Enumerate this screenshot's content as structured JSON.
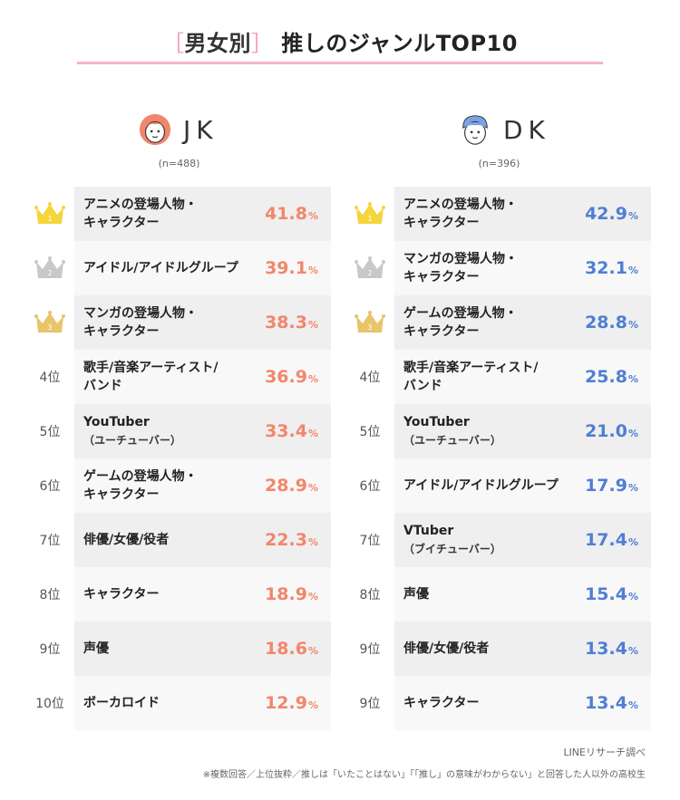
{
  "title": {
    "bracket_open": "［",
    "tag": "男女別",
    "bracket_close": "］",
    "main": "推しのジャンルTOP10"
  },
  "colors": {
    "jk_accent": "#f2866b",
    "dk_accent": "#4f7ed4",
    "gold": "#f5d53c",
    "silver": "#c8c8c8",
    "bronze": "#e8c46a",
    "title_rule": "#f6b6c6"
  },
  "groups": [
    {
      "label": "JK",
      "n": "(n=488)",
      "avatar_icon": "girl-face-icon",
      "rows": [
        {
          "rank": "1",
          "label": "アニメの登場人物・",
          "label2": "キャラクター",
          "sub": "",
          "value": "41.8",
          "unit": "%"
        },
        {
          "rank": "2",
          "label": "アイドル/アイドルグループ",
          "label2": "",
          "sub": "",
          "value": "39.1",
          "unit": "%"
        },
        {
          "rank": "3",
          "label": "マンガの登場人物・",
          "label2": "キャラクター",
          "sub": "",
          "value": "38.3",
          "unit": "%"
        },
        {
          "rank": "4位",
          "label": "歌手/音楽アーティスト/",
          "label2": "バンド",
          "sub": "",
          "value": "36.9",
          "unit": "%"
        },
        {
          "rank": "5位",
          "label": "YouTuber",
          "label2": "",
          "sub": "（ユーチューバー）",
          "value": "33.4",
          "unit": "%"
        },
        {
          "rank": "6位",
          "label": "ゲームの登場人物・",
          "label2": "キャラクター",
          "sub": "",
          "value": "28.9",
          "unit": "%"
        },
        {
          "rank": "7位",
          "label": "俳優/女優/役者",
          "label2": "",
          "sub": "",
          "value": "22.3",
          "unit": "%"
        },
        {
          "rank": "8位",
          "label": "キャラクター",
          "label2": "",
          "sub": "",
          "value": "18.9",
          "unit": "%"
        },
        {
          "rank": "9位",
          "label": "声優",
          "label2": "",
          "sub": "",
          "value": "18.6",
          "unit": "%"
        },
        {
          "rank": "10位",
          "label": "ボーカロイド",
          "label2": "",
          "sub": "",
          "value": "12.9",
          "unit": "%"
        }
      ]
    },
    {
      "label": "DK",
      "n": "(n=396)",
      "avatar_icon": "boy-face-icon",
      "rows": [
        {
          "rank": "1",
          "label": "アニメの登場人物・",
          "label2": "キャラクター",
          "sub": "",
          "value": "42.9",
          "unit": "%"
        },
        {
          "rank": "2",
          "label": "マンガの登場人物・",
          "label2": "キャラクター",
          "sub": "",
          "value": "32.1",
          "unit": "%"
        },
        {
          "rank": "3",
          "label": "ゲームの登場人物・",
          "label2": "キャラクター",
          "sub": "",
          "value": "28.8",
          "unit": "%"
        },
        {
          "rank": "4位",
          "label": "歌手/音楽アーティスト/",
          "label2": "バンド",
          "sub": "",
          "value": "25.8",
          "unit": "%"
        },
        {
          "rank": "5位",
          "label": "YouTuber",
          "label2": "",
          "sub": "（ユーチューバー）",
          "value": "21.0",
          "unit": "%"
        },
        {
          "rank": "6位",
          "label": "アイドル/アイドルグループ",
          "label2": "",
          "sub": "",
          "value": "17.9",
          "unit": "%"
        },
        {
          "rank": "7位",
          "label": "VTuber",
          "label2": "",
          "sub": "（ブイチューバー）",
          "value": "17.4",
          "unit": "%"
        },
        {
          "rank": "8位",
          "label": "声優",
          "label2": "",
          "sub": "",
          "value": "15.4",
          "unit": "%"
        },
        {
          "rank": "9位",
          "label": "俳優/女優/役者",
          "label2": "",
          "sub": "",
          "value": "13.4",
          "unit": "%"
        },
        {
          "rank": "9位",
          "label": "キャラクター",
          "label2": "",
          "sub": "",
          "value": "13.4",
          "unit": "%"
        }
      ]
    }
  ],
  "chart_data": {
    "type": "table",
    "title": "［男女別］推しのジャンルTOP10",
    "series": [
      {
        "name": "JK",
        "categories": [
          "アニメの登場人物・キャラクター",
          "アイドル/アイドルグループ",
          "マンガの登場人物・キャラクター",
          "歌手/音楽アーティスト/バンド",
          "YouTuber（ユーチューバー）",
          "ゲームの登場人物・キャラクター",
          "俳優/女優/役者",
          "キャラクター",
          "声優",
          "ボーカロイド"
        ],
        "values": [
          41.8,
          39.1,
          38.3,
          36.9,
          33.4,
          28.9,
          22.3,
          18.9,
          18.6,
          12.9
        ]
      },
      {
        "name": "DK",
        "categories": [
          "アニメの登場人物・キャラクター",
          "マンガの登場人物・キャラクター",
          "ゲームの登場人物・キャラクター",
          "歌手/音楽アーティスト/バンド",
          "YouTuber（ユーチューバー）",
          "アイドル/アイドルグループ",
          "VTuber（ブイチューバー）",
          "声優",
          "俳優/女優/役者",
          "キャラクター"
        ],
        "values": [
          42.9,
          32.1,
          28.8,
          25.8,
          21.0,
          17.9,
          17.4,
          15.4,
          13.4,
          13.4
        ]
      }
    ]
  },
  "footer": {
    "source": "LINEリサーチ調べ",
    "note": "※複数回答／上位抜粋／推しは「いたことはない」「「推し」の意味がわからない」と回答した人以外の高校生"
  }
}
